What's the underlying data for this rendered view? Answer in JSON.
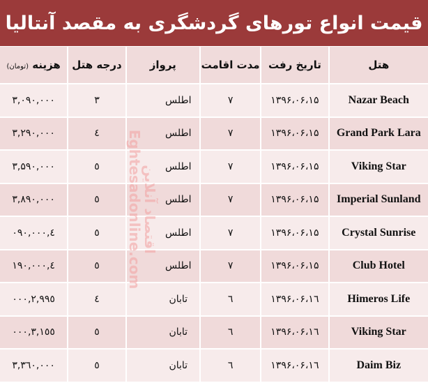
{
  "title": "قیمت انواع تورهای گردشگری به مقصد آنتالیا",
  "headers": {
    "hotel": "هتل",
    "date": "تاریخ رفت",
    "stay": "مدت اقامت",
    "flight": "پرواز",
    "grade": "درجه هتل",
    "price": "هزینه",
    "price_unit": "(تومان)"
  },
  "rows": [
    {
      "hotel": "Nazar Beach",
      "date": "۱۳۹۶،۰۶،۱۵",
      "stay": "۷",
      "flight": "اطلس",
      "grade": "۳",
      "price": "۳,۰۹۰,۰۰۰"
    },
    {
      "hotel": "Grand Park Lara",
      "date": "۱۳۹۶،۰۶،۱۵",
      "stay": "۷",
      "flight": "اطلس",
      "grade": "٤",
      "price": "۳,۲۹۰,۰۰۰"
    },
    {
      "hotel": "Viking Star",
      "date": "۱۳۹۶،۰۶،۱۵",
      "stay": "۷",
      "flight": "اطلس",
      "grade": "٥",
      "price": "۳,۵۹۰,۰۰۰"
    },
    {
      "hotel": "Imperial Sunland",
      "date": "۱۳۹۶،۰۶،۱۵",
      "stay": "۷",
      "flight": "اطلس",
      "grade": "٥",
      "price": "۳,۸۹۰,۰۰۰"
    },
    {
      "hotel": "Crystal Sunrise",
      "date": "۱۳۹۶،۰۶،۱۵",
      "stay": "۷",
      "flight": "اطلس",
      "grade": "٥",
      "price": "٤,۰۹۰,۰۰۰"
    },
    {
      "hotel": "Club Hotel",
      "date": "۱۳۹۶،۰۶،۱۵",
      "stay": "۷",
      "flight": "اطلس",
      "grade": "٥",
      "price": "٤,۱۹۰,۰۰۰"
    },
    {
      "hotel": "Himeros Life",
      "date": "۱۳۹۶،۰۶،۱٦",
      "stay": "٦",
      "flight": "تابان",
      "grade": "٤",
      "price": "۲,۹۹٥,۰۰۰"
    },
    {
      "hotel": "Viking Star",
      "date": "۱۳۹۶،۰۶،۱٦",
      "stay": "٦",
      "flight": "تابان",
      "grade": "٥",
      "price": "۳,۱٥٥,۰۰۰"
    },
    {
      "hotel": "Daim Biz",
      "date": "۱۳۹۶،۰۶،۱٦",
      "stay": "٦",
      "flight": "تابان",
      "grade": "٥",
      "price": "۳,۳٦۰,۰۰۰"
    }
  ],
  "watermark": {
    "fa": "اقتصاد آنلاین",
    "en": "Eghtesadonline.com"
  },
  "colors": {
    "title_bg": "#9b3a3a",
    "row_light": "#f7ebeb",
    "row_dark": "#f0dada"
  }
}
